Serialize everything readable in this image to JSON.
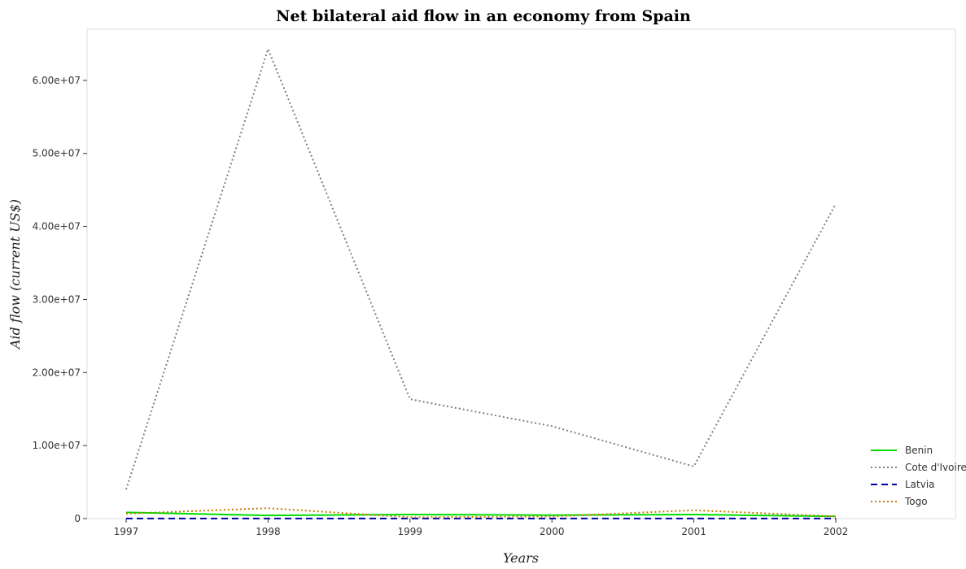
{
  "title": "Net bilateral aid flow in an economy from Spain",
  "chart_data": {
    "type": "line",
    "title": "Net bilateral aid flow in an economy from Spain",
    "xlabel": "Years",
    "ylabel": "Aid flow (current US$)",
    "x": [
      "1997",
      "1998",
      "1999",
      "2000",
      "2001",
      "2002"
    ],
    "ylim": [
      0,
      67000000
    ],
    "yticks": [
      0,
      10000000,
      20000000,
      30000000,
      40000000,
      50000000,
      60000000
    ],
    "ytick_labels": [
      "0",
      "1.00e+07",
      "2.00e+07",
      "3.00e+07",
      "4.00e+07",
      "5.00e+07",
      "6.00e+07"
    ],
    "grid": false,
    "legend_position": "bottom-right",
    "series": [
      {
        "name": "Benin",
        "color": "#00dd00",
        "dash": "solid",
        "values": [
          850000,
          430000,
          560000,
          480000,
          560000,
          300000
        ]
      },
      {
        "name": "Cote d'Ivoire",
        "color": "#808080",
        "dash": "dotted",
        "values": [
          4000000,
          64300000,
          16350000,
          12650000,
          7150000,
          43100000
        ]
      },
      {
        "name": "Latvia",
        "color": "#0000aa",
        "dash": "dashed",
        "values": [
          10000,
          10000,
          10000,
          10000,
          10000,
          10000
        ]
      },
      {
        "name": "Togo",
        "color": "#cc7a00",
        "dash": "dotted",
        "values": [
          680000,
          1420000,
          180000,
          290000,
          1150000,
          300000
        ]
      }
    ]
  }
}
